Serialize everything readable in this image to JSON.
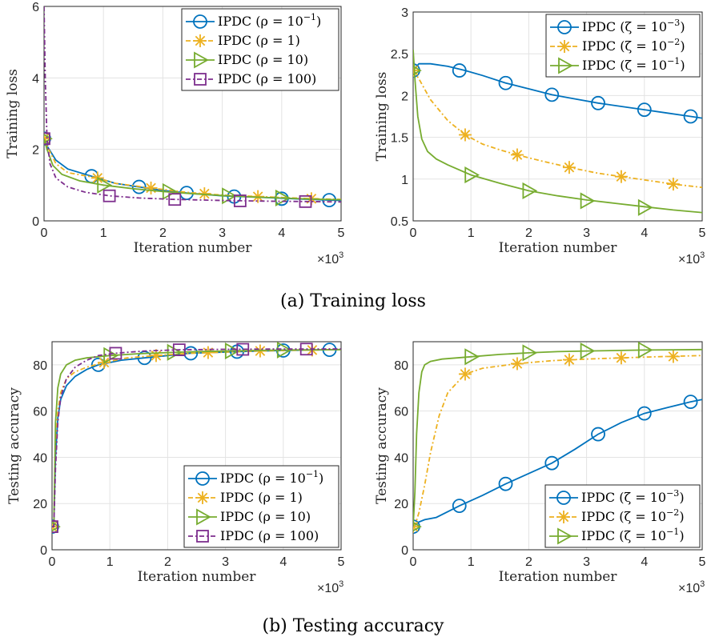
{
  "captions": {
    "a": "(a) Training loss",
    "b": "(b) Testing accuracy"
  },
  "colors": {
    "blue": "#0072BD",
    "orange": "#EDB120",
    "green": "#77AC30",
    "purple": "#7E2F8E"
  },
  "chart_data": [
    {
      "type": "line",
      "xlabel": "Iteration number",
      "ylabel": "Training loss",
      "xmultiplier": "×10",
      "xlim": [
        0,
        5
      ],
      "ylim": [
        0,
        6
      ],
      "xticks": [
        "0",
        "1",
        "2",
        "3",
        "4",
        "5"
      ],
      "yticks": [
        "0",
        "2",
        "4",
        "6"
      ],
      "grid": true,
      "legend_position": "top-right",
      "series": [
        {
          "name": "IPDC (ρ = 10",
          "exp": "−1",
          "suffix": ")",
          "color": "#0072BD",
          "marker": "circle",
          "dash": "solid",
          "x": [
            0,
            0.05,
            0.2,
            0.4,
            0.8,
            1.2,
            1.6,
            2.0,
            2.4,
            3.0,
            3.6,
            4.2,
            4.8,
            5.0
          ],
          "y": [
            2.3,
            2.1,
            1.7,
            1.45,
            1.25,
            1.05,
            0.95,
            0.85,
            0.78,
            0.7,
            0.66,
            0.62,
            0.58,
            0.57
          ],
          "mx": [
            0,
            0.8,
            1.6,
            2.4,
            3.2,
            4.0,
            4.8
          ],
          "my": [
            2.3,
            1.25,
            0.95,
            0.78,
            0.68,
            0.62,
            0.58
          ]
        },
        {
          "name": "IPDC (ρ = 1)",
          "exp": "",
          "suffix": "",
          "color": "#EDB120",
          "marker": "star",
          "dash": "6,3,2,3",
          "x": [
            0,
            0.05,
            0.2,
            0.4,
            0.9,
            1.2,
            1.8,
            2.4,
            3.0,
            3.6,
            4.2,
            4.5,
            5.0
          ],
          "y": [
            2.3,
            2.1,
            1.6,
            1.35,
            1.2,
            1.05,
            0.92,
            0.8,
            0.72,
            0.68,
            0.64,
            0.62,
            0.6
          ],
          "mx": [
            0,
            0.9,
            1.8,
            2.7,
            3.6,
            4.5
          ],
          "my": [
            2.3,
            1.2,
            0.92,
            0.76,
            0.68,
            0.62
          ]
        },
        {
          "name": "IPDC (ρ = 10)",
          "exp": "",
          "suffix": "",
          "color": "#77AC30",
          "marker": "triangle",
          "dash": "solid",
          "x": [
            0,
            0.05,
            0.15,
            0.3,
            0.6,
            1.0,
            1.5,
            2.0,
            2.5,
            3.0,
            3.5,
            4.0,
            4.5,
            5.0
          ],
          "y": [
            2.3,
            2.0,
            1.55,
            1.3,
            1.12,
            1.0,
            0.9,
            0.82,
            0.76,
            0.71,
            0.67,
            0.64,
            0.61,
            0.59
          ],
          "mx": [
            0,
            1.0,
            2.1,
            3.1,
            4.0
          ],
          "my": [
            2.3,
            1.0,
            0.82,
            0.7,
            0.64
          ]
        },
        {
          "name": "IPDC (ρ = 100)",
          "exp": "",
          "suffix": "",
          "color": "#7E2F8E",
          "marker": "square",
          "dash": "6,3,2,3",
          "x": [
            0,
            0.02,
            0.05,
            0.1,
            0.2,
            0.4,
            0.7,
            1.1,
            1.6,
            2.2,
            3.0,
            3.8,
            4.5,
            5.0
          ],
          "y": [
            6.0,
            4.0,
            2.3,
            1.6,
            1.2,
            0.95,
            0.8,
            0.7,
            0.64,
            0.6,
            0.57,
            0.55,
            0.54,
            0.53
          ],
          "mx": [
            0,
            1.1,
            2.2,
            3.3,
            4.4
          ],
          "my": [
            2.3,
            0.7,
            0.6,
            0.56,
            0.54
          ]
        }
      ]
    },
    {
      "type": "line",
      "xlabel": "Iteration number",
      "ylabel": "Training loss",
      "xmultiplier": "×10",
      "xlim": [
        0,
        5
      ],
      "ylim": [
        0.5,
        3
      ],
      "xticks": [
        "0",
        "1",
        "2",
        "3",
        "4",
        "5"
      ],
      "yticks": [
        "0.5",
        "1",
        "1.5",
        "2",
        "2.5",
        "3"
      ],
      "grid": true,
      "legend_position": "top-right",
      "series": [
        {
          "name": "IPDC (ζ = 10",
          "exp": "−3",
          "suffix": ")",
          "color": "#0072BD",
          "marker": "circle",
          "dash": "solid",
          "x": [
            0,
            0.1,
            0.3,
            0.6,
            0.9,
            1.2,
            1.6,
            2.0,
            2.4,
            2.8,
            3.2,
            3.6,
            4.0,
            4.4,
            4.8,
            5.0
          ],
          "y": [
            2.3,
            2.38,
            2.38,
            2.35,
            2.3,
            2.24,
            2.15,
            2.08,
            2.01,
            1.96,
            1.91,
            1.87,
            1.83,
            1.79,
            1.75,
            1.73
          ],
          "mx": [
            0,
            0.8,
            1.6,
            2.4,
            3.2,
            4.0,
            4.8
          ],
          "my": [
            2.3,
            2.3,
            2.15,
            2.01,
            1.91,
            1.83,
            1.75
          ]
        },
        {
          "name": "IPDC (ζ = 10",
          "exp": "−2",
          "suffix": ")",
          "color": "#EDB120",
          "marker": "star",
          "dash": "6,3,2,3",
          "x": [
            0,
            0.1,
            0.3,
            0.6,
            0.9,
            1.2,
            1.5,
            1.8,
            2.2,
            2.7,
            3.2,
            3.6,
            4.0,
            4.5,
            5.0
          ],
          "y": [
            2.3,
            2.2,
            1.95,
            1.7,
            1.53,
            1.42,
            1.35,
            1.29,
            1.22,
            1.14,
            1.07,
            1.03,
            0.99,
            0.94,
            0.9
          ],
          "mx": [
            0,
            0.9,
            1.8,
            2.7,
            3.6,
            4.5
          ],
          "my": [
            2.3,
            1.53,
            1.29,
            1.14,
            1.03,
            0.94
          ]
        },
        {
          "name": "IPDC (ζ = 10",
          "exp": "−1",
          "suffix": ")",
          "color": "#77AC30",
          "marker": "triangle",
          "dash": "solid",
          "x": [
            0,
            0.03,
            0.08,
            0.15,
            0.25,
            0.4,
            0.6,
            1.0,
            1.5,
            2.0,
            2.5,
            3.0,
            3.5,
            4.0,
            4.5,
            5.0
          ],
          "y": [
            2.55,
            2.2,
            1.75,
            1.48,
            1.33,
            1.24,
            1.17,
            1.05,
            0.95,
            0.86,
            0.8,
            0.75,
            0.71,
            0.67,
            0.63,
            0.6
          ],
          "mx": [
            0,
            1.0,
            2.0,
            3.0,
            4.0
          ],
          "my": [
            2.3,
            1.05,
            0.86,
            0.74,
            0.66
          ]
        }
      ]
    },
    {
      "type": "line",
      "xlabel": "Iteration number",
      "ylabel": "Testing accuracy",
      "xmultiplier": "×10",
      "xlim": [
        0,
        5
      ],
      "ylim": [
        0,
        90
      ],
      "xticks": [
        "0",
        "1",
        "2",
        "3",
        "4",
        "5"
      ],
      "yticks": [
        "0",
        "20",
        "40",
        "60",
        "80"
      ],
      "grid": true,
      "legend_position": "bottom-right",
      "series": [
        {
          "name": "IPDC (ρ = 10",
          "exp": "−1",
          "suffix": ")",
          "color": "#0072BD",
          "marker": "circle",
          "dash": "solid",
          "x": [
            0,
            0.03,
            0.06,
            0.1,
            0.15,
            0.25,
            0.4,
            0.6,
            0.8,
            1.2,
            1.6,
            2.0,
            2.4,
            3.0,
            3.6,
            4.2,
            4.8,
            5.0
          ],
          "y": [
            10,
            10,
            40,
            57,
            65,
            71,
            75,
            78,
            80,
            82,
            83,
            84,
            85,
            85.5,
            86,
            86.3,
            86.5,
            86.6
          ],
          "mx": [
            0,
            0.8,
            1.6,
            2.4,
            3.2,
            4.0,
            4.8
          ],
          "my": [
            10,
            80,
            83,
            85,
            85.7,
            86.2,
            86.5
          ]
        },
        {
          "name": "IPDC (ρ = 1)",
          "exp": "",
          "suffix": "",
          "color": "#EDB120",
          "marker": "star",
          "dash": "6,3,2,3",
          "x": [
            0,
            0.03,
            0.06,
            0.1,
            0.15,
            0.25,
            0.4,
            0.6,
            0.9,
            1.3,
            1.8,
            2.4,
            3.0,
            3.6,
            4.2,
            5.0
          ],
          "y": [
            10,
            10,
            45,
            60,
            68,
            74,
            77,
            79,
            81,
            83,
            84,
            85,
            85.5,
            86,
            86.3,
            86.6
          ],
          "mx": [
            0,
            0.9,
            1.8,
            2.7,
            3.6,
            4.5
          ],
          "my": [
            10,
            81,
            84,
            85.3,
            86,
            86.4
          ]
        },
        {
          "name": "IPDC (ρ = 10)",
          "exp": "",
          "suffix": "",
          "color": "#77AC30",
          "marker": "triangle",
          "dash": "solid",
          "x": [
            0,
            0.03,
            0.06,
            0.1,
            0.15,
            0.25,
            0.4,
            0.6,
            1.0,
            1.5,
            2.0,
            2.5,
            3.0,
            3.5,
            4.0,
            4.5,
            5.0
          ],
          "y": [
            10,
            10,
            55,
            70,
            76,
            80,
            82,
            83,
            84,
            84.8,
            85.3,
            85.7,
            86,
            86.2,
            86.4,
            86.5,
            86.6
          ],
          "mx": [
            0,
            1.0,
            2.1,
            3.1,
            4.0
          ],
          "my": [
            10,
            84,
            85.4,
            86,
            86.4
          ]
        },
        {
          "name": "IPDC (ρ = 100)",
          "exp": "",
          "suffix": "",
          "color": "#7E2F8E",
          "marker": "square",
          "dash": "6,3,2,3",
          "x": [
            0,
            0.03,
            0.06,
            0.1,
            0.15,
            0.25,
            0.4,
            0.6,
            0.8,
            1.1,
            1.6,
            2.2,
            3.0,
            3.8,
            4.4,
            5.0
          ],
          "y": [
            10,
            10,
            35,
            55,
            66,
            74,
            79,
            82,
            84,
            85,
            86,
            86.5,
            86.7,
            86.8,
            86.8,
            86.9
          ],
          "mx": [
            0,
            1.1,
            2.2,
            3.3,
            4.4
          ],
          "my": [
            10,
            85,
            86.5,
            86.7,
            86.8
          ]
        }
      ]
    },
    {
      "type": "line",
      "xlabel": "Iteration number",
      "ylabel": "Testing accuracy",
      "xmultiplier": "×10",
      "xlim": [
        0,
        5
      ],
      "ylim": [
        0,
        90
      ],
      "xticks": [
        "0",
        "1",
        "2",
        "3",
        "4",
        "5"
      ],
      "yticks": [
        "0",
        "20",
        "40",
        "60",
        "80"
      ],
      "grid": true,
      "legend_position": "bottom-right",
      "series": [
        {
          "name": "IPDC (ζ = 10",
          "exp": "−3",
          "suffix": ")",
          "color": "#0072BD",
          "marker": "circle",
          "dash": "solid",
          "x": [
            0,
            0.1,
            0.2,
            0.4,
            0.8,
            1.2,
            1.6,
            2.0,
            2.4,
            2.8,
            3.2,
            3.6,
            4.0,
            4.4,
            4.8,
            5.0
          ],
          "y": [
            10,
            12,
            13,
            14,
            19,
            23.5,
            28.5,
            33,
            37.5,
            43.5,
            50,
            55,
            59,
            61.5,
            64,
            65
          ],
          "mx": [
            0,
            0.8,
            1.6,
            2.4,
            3.2,
            4.0,
            4.8
          ],
          "my": [
            10,
            19,
            28.5,
            37.5,
            50,
            59,
            64
          ]
        },
        {
          "name": "IPDC (ζ = 10",
          "exp": "−2",
          "suffix": ")",
          "color": "#EDB120",
          "marker": "star",
          "dash": "6,3,2,3",
          "x": [
            0,
            0.05,
            0.1,
            0.2,
            0.3,
            0.45,
            0.6,
            0.9,
            1.2,
            1.8,
            2.4,
            3.0,
            3.6,
            4.2,
            5.0
          ],
          "y": [
            10,
            12,
            16,
            28,
            42,
            58,
            68,
            76,
            78.5,
            80.5,
            81.8,
            82.5,
            83,
            83.5,
            84
          ],
          "mx": [
            0,
            0.9,
            1.8,
            2.7,
            3.6,
            4.5
          ],
          "my": [
            10,
            76,
            80.5,
            82.2,
            83,
            83.6
          ]
        },
        {
          "name": "IPDC (ζ = 10",
          "exp": "−1",
          "suffix": ")",
          "color": "#77AC30",
          "marker": "triangle",
          "dash": "solid",
          "x": [
            0,
            0.03,
            0.06,
            0.1,
            0.15,
            0.2,
            0.3,
            0.5,
            1.0,
            1.5,
            2.0,
            2.5,
            3.0,
            3.5,
            4.0,
            4.5,
            5.0
          ],
          "y": [
            10,
            25,
            50,
            68,
            77,
            80,
            81.5,
            82.5,
            83.5,
            84.5,
            85.2,
            85.7,
            86,
            86.2,
            86.4,
            86.5,
            86.6
          ],
          "mx": [
            0,
            1.0,
            2.0,
            3.0,
            4.0
          ],
          "my": [
            10,
            83.5,
            85.2,
            86,
            86.4
          ]
        }
      ]
    }
  ]
}
